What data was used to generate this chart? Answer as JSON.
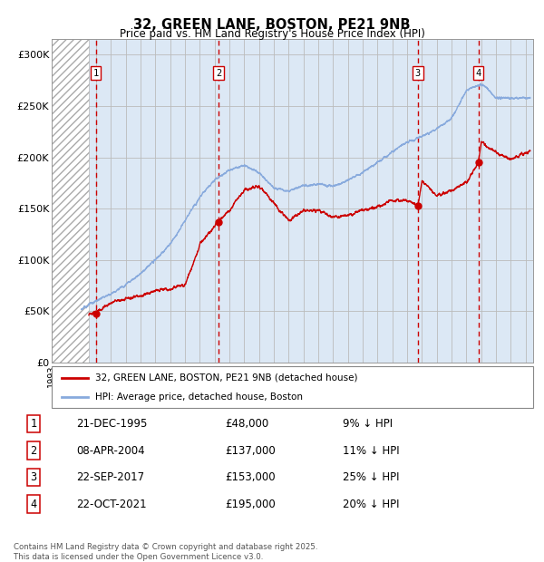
{
  "title": "32, GREEN LANE, BOSTON, PE21 9NB",
  "subtitle": "Price paid vs. HM Land Registry's House Price Index (HPI)",
  "ylabel_ticks": [
    "£0",
    "£50K",
    "£100K",
    "£150K",
    "£200K",
    "£250K",
    "£300K"
  ],
  "ylim": [
    0,
    315000
  ],
  "xlim_start": 1993.0,
  "xlim_end": 2025.5,
  "hatch_end_year": 1995.5,
  "sale_dates": [
    1995.97,
    2004.27,
    2017.72,
    2021.8
  ],
  "sale_prices": [
    48000,
    137000,
    153000,
    195000
  ],
  "sale_labels": [
    "1",
    "2",
    "3",
    "4"
  ],
  "legend_label_red": "32, GREEN LANE, BOSTON, PE21 9NB (detached house)",
  "legend_label_blue": "HPI: Average price, detached house, Boston",
  "table_data": [
    [
      "1",
      "21-DEC-1995",
      "£48,000",
      "9% ↓ HPI"
    ],
    [
      "2",
      "08-APR-2004",
      "£137,000",
      "11% ↓ HPI"
    ],
    [
      "3",
      "22-SEP-2017",
      "£153,000",
      "25% ↓ HPI"
    ],
    [
      "4",
      "22-OCT-2021",
      "£195,000",
      "20% ↓ HPI"
    ]
  ],
  "footer": "Contains HM Land Registry data © Crown copyright and database right 2025.\nThis data is licensed under the Open Government Licence v3.0.",
  "line_color_red": "#cc0000",
  "line_color_blue": "#88aadd",
  "grid_color": "#bbbbbb",
  "bg_color": "#dce8f5",
  "dashed_line_color": "#cc0000",
  "hpi_anchors_x": [
    1995,
    1996,
    1997,
    1998,
    1999,
    2000,
    2001,
    2002,
    2003,
    2004,
    2005,
    2006,
    2007,
    2008,
    2009,
    2010,
    2011,
    2012,
    2013,
    2014,
    2015,
    2016,
    2017,
    2018,
    2019,
    2020,
    2021,
    2022,
    2023,
    2024,
    2025
  ],
  "hpi_anchors_y": [
    52000,
    60000,
    67000,
    76000,
    87000,
    100000,
    115000,
    138000,
    162000,
    178000,
    188000,
    192000,
    185000,
    170000,
    167000,
    172000,
    174000,
    172000,
    178000,
    185000,
    195000,
    205000,
    215000,
    220000,
    228000,
    238000,
    265000,
    272000,
    258000,
    258000,
    258000
  ],
  "pp_anchors_x": [
    1995.5,
    1995.97,
    1997,
    1998,
    1999,
    2000,
    2001,
    2002,
    2003,
    2004.27,
    2005,
    2006,
    2007,
    2008,
    2009,
    2010,
    2011,
    2012,
    2013,
    2014,
    2015,
    2016,
    2017,
    2017.72,
    2018,
    2019,
    2020,
    2021,
    2021.8,
    2022,
    2023,
    2024,
    2025
  ],
  "pp_anchors_y": [
    47000,
    48000,
    58000,
    62000,
    65000,
    70000,
    72000,
    75000,
    115000,
    137000,
    148000,
    168000,
    172000,
    155000,
    138000,
    148000,
    148000,
    142000,
    143000,
    148000,
    152000,
    158000,
    158000,
    153000,
    178000,
    162000,
    168000,
    175000,
    195000,
    215000,
    205000,
    198000,
    205000
  ]
}
